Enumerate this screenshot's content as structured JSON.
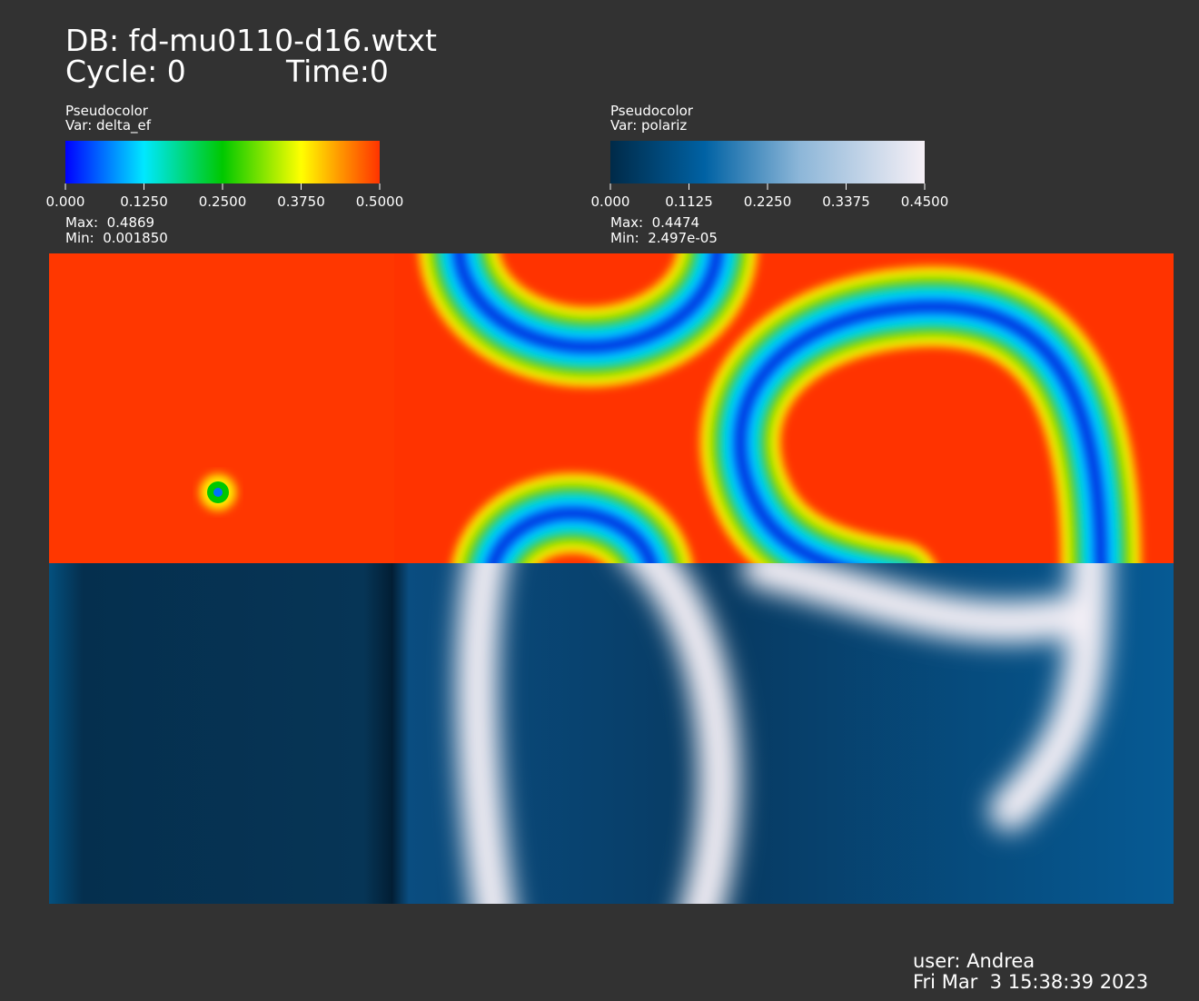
{
  "header": {
    "database": "DB: fd-mu0110-d16.wtxt",
    "cycle": "Cycle: 0",
    "time": "Time:0"
  },
  "legends": [
    {
      "plot": "Pseudocolor",
      "variable": "Var: delta_ef",
      "ticks": [
        "0.000",
        "0.1250",
        "0.2500",
        "0.3750",
        "0.5000"
      ],
      "max": "Max:  0.4869",
      "min": "Min:  0.001850"
    },
    {
      "plot": "Pseudocolor",
      "variable": "Var: polariz",
      "ticks": [
        "0.000",
        "0.1125",
        "0.2250",
        "0.3375",
        "0.4500"
      ],
      "max": "Max:  0.4474",
      "min": "Min:  2.497e-05"
    }
  ],
  "footer": {
    "user": "user: Andrea",
    "date": "Fri Mar  3 15:38:39 2023"
  }
}
